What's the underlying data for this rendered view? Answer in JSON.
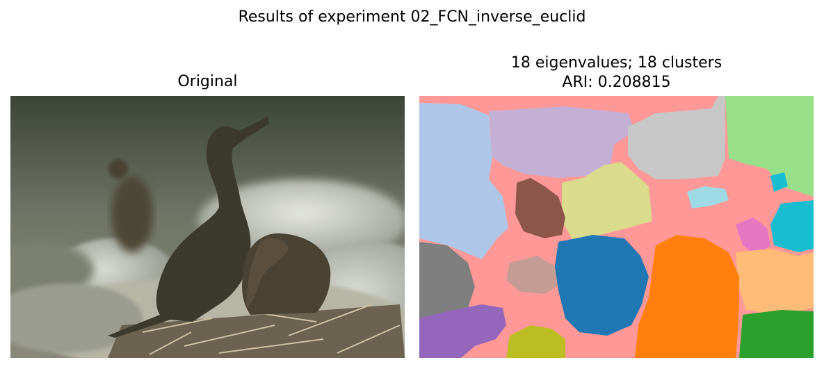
{
  "figure": {
    "suptitle": "Results of experiment 02_FCN_inverse_euclid"
  },
  "left_panel": {
    "title": "Original"
  },
  "right_panel": {
    "title_line1": "18 eigenvalues; 18 clusters",
    "title_line2": "ARI: 0.208815"
  },
  "segment_colors": {
    "pink": "#ff9896",
    "lightblue": "#aec7e8",
    "lavender": "#c5b0d5",
    "lightgray": "#c7c7c7",
    "lightgreen": "#98df8a",
    "khaki": "#dbdb8d",
    "brown": "#8c564b",
    "cyan": "#17becf",
    "lightcyan": "#9edae5",
    "orchid": "#e377c2",
    "gray": "#7f7f7f",
    "rosybrown": "#c49c94",
    "blue": "#1f77b4",
    "orange": "#ff7f0e",
    "peach": "#ffbb78",
    "purple": "#9467bd",
    "olive": "#bcbd22",
    "green": "#2ca02c"
  }
}
